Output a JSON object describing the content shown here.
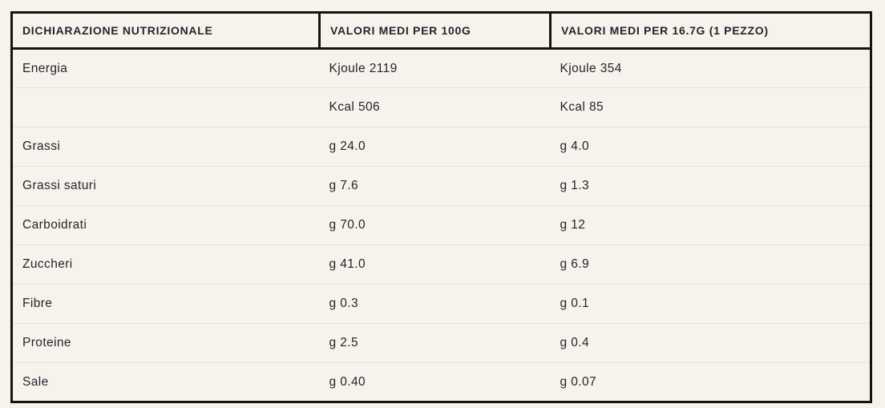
{
  "table": {
    "columns": [
      "DICHIARAZIONE NUTRIZIONALE",
      "VALORI MEDI PER 100G",
      "VALORI MEDI PER 16.7G (1 PEZZO)"
    ],
    "rows": [
      [
        "Energia",
        "Kjoule 2119",
        "Kjoule 354"
      ],
      [
        "",
        "Kcal 506",
        "Kcal 85"
      ],
      [
        "Grassi",
        "g 24.0",
        "g 4.0"
      ],
      [
        "Grassi saturi",
        "g 7.6",
        "g 1.3"
      ],
      [
        "Carboidrati",
        "g 70.0",
        "g 12"
      ],
      [
        "Zuccheri",
        "g 41.0",
        "g 6.9"
      ],
      [
        "Fibre",
        "g 0.3",
        "g 0.1"
      ],
      [
        "Proteine",
        "g 2.5",
        "g 0.4"
      ],
      [
        "Sale",
        "g 0.40",
        "g 0.07"
      ]
    ],
    "colors": {
      "background": "#f5f3ec",
      "border_dark": "#141414",
      "divider_light": "#dfe4df",
      "text": "#22262b"
    }
  },
  "chart_data": {
    "type": "table",
    "title": "DICHIARAZIONE NUTRIZIONALE",
    "columns": [
      "DICHIARAZIONE NUTRIZIONALE",
      "VALORI MEDI PER 100G",
      "VALORI MEDI PER 16.7G (1 PEZZO)"
    ],
    "rows": [
      {
        "label": "Energia",
        "per_100g": "Kjoule 2119",
        "per_piece": "Kjoule 354"
      },
      {
        "label": "",
        "per_100g": "Kcal 506",
        "per_piece": "Kcal 85"
      },
      {
        "label": "Grassi",
        "per_100g": "g 24.0",
        "per_piece": "g 4.0"
      },
      {
        "label": "Grassi saturi",
        "per_100g": "g 7.6",
        "per_piece": "g 1.3"
      },
      {
        "label": "Carboidrati",
        "per_100g": "g 70.0",
        "per_piece": "g 12"
      },
      {
        "label": "Zuccheri",
        "per_100g": "g 41.0",
        "per_piece": "g 6.9"
      },
      {
        "label": "Fibre",
        "per_100g": "g 0.3",
        "per_piece": "g 0.1"
      },
      {
        "label": "Proteine",
        "per_100g": "g 2.5",
        "per_piece": "g 0.4"
      },
      {
        "label": "Sale",
        "per_100g": "g 0.40",
        "per_piece": "g 0.07"
      }
    ]
  }
}
